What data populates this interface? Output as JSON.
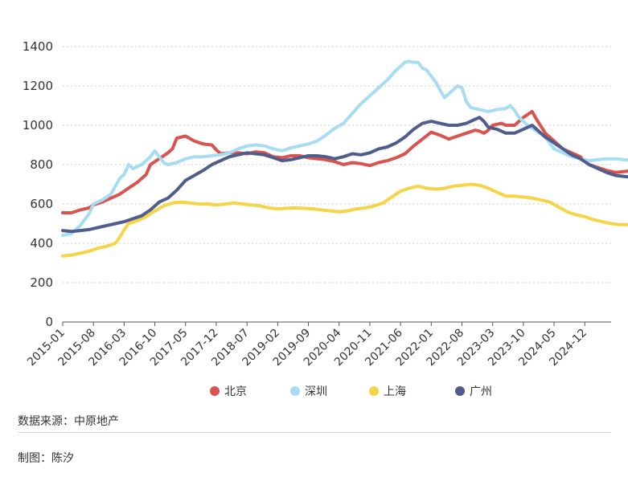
{
  "chart_data": {
    "type": "line",
    "title": "",
    "xlabel": "",
    "ylabel": "",
    "ylim": [
      0,
      1400
    ],
    "yticks": [
      0,
      200,
      400,
      600,
      800,
      1000,
      1200,
      1400
    ],
    "x_start": "2015-01",
    "x_end": "2025-06",
    "xticks": [
      "2015-01",
      "2015-08",
      "2016-03",
      "2016-10",
      "2017-05",
      "2017-12",
      "2018-07",
      "2019-02",
      "2019-09",
      "2020-04",
      "2020-11",
      "2021-06",
      "2022-01",
      "2022-08",
      "2023-03",
      "2023-10",
      "2024-05",
      "2024-12"
    ],
    "grid": true,
    "legend_position": "bottom",
    "series": [
      {
        "name": "北京",
        "color": "#d9534f",
        "points": [
          [
            0,
            555
          ],
          [
            2,
            555
          ],
          [
            4,
            570
          ],
          [
            6,
            580
          ],
          [
            7,
            595
          ],
          [
            9,
            610
          ],
          [
            11,
            630
          ],
          [
            13,
            650
          ],
          [
            15,
            680
          ],
          [
            17,
            710
          ],
          [
            19,
            750
          ],
          [
            20,
            800
          ],
          [
            22,
            830
          ],
          [
            24,
            860
          ],
          [
            25,
            880
          ],
          [
            26,
            935
          ],
          [
            28,
            945
          ],
          [
            30,
            920
          ],
          [
            32,
            905
          ],
          [
            34,
            900
          ],
          [
            35,
            875
          ],
          [
            36,
            855
          ],
          [
            38,
            860
          ],
          [
            40,
            860
          ],
          [
            42,
            855
          ],
          [
            44,
            865
          ],
          [
            46,
            860
          ],
          [
            48,
            840
          ],
          [
            50,
            835
          ],
          [
            52,
            845
          ],
          [
            54,
            845
          ],
          [
            56,
            835
          ],
          [
            58,
            830
          ],
          [
            60,
            825
          ],
          [
            62,
            815
          ],
          [
            64,
            800
          ],
          [
            66,
            810
          ],
          [
            68,
            805
          ],
          [
            70,
            795
          ],
          [
            72,
            810
          ],
          [
            74,
            820
          ],
          [
            76,
            835
          ],
          [
            78,
            855
          ],
          [
            80,
            895
          ],
          [
            82,
            930
          ],
          [
            84,
            965
          ],
          [
            86,
            950
          ],
          [
            88,
            930
          ],
          [
            90,
            945
          ],
          [
            92,
            960
          ],
          [
            94,
            975
          ],
          [
            95,
            970
          ],
          [
            96,
            960
          ],
          [
            97,
            975
          ],
          [
            98,
            1000
          ],
          [
            100,
            1010
          ],
          [
            101,
            1000
          ],
          [
            103,
            1000
          ],
          [
            105,
            1040
          ],
          [
            107,
            1070
          ],
          [
            108,
            1030
          ],
          [
            110,
            960
          ],
          [
            112,
            920
          ],
          [
            114,
            880
          ],
          [
            116,
            860
          ],
          [
            118,
            840
          ],
          [
            120,
            800
          ],
          [
            122,
            785
          ],
          [
            124,
            770
          ],
          [
            126,
            760
          ],
          [
            128,
            765
          ],
          [
            130,
            770
          ],
          [
            132,
            765
          ],
          [
            134,
            755
          ]
        ]
      },
      {
        "name": "深圳",
        "color": "#a8dcf2",
        "points": [
          [
            0,
            440
          ],
          [
            2,
            450
          ],
          [
            4,
            490
          ],
          [
            6,
            550
          ],
          [
            7,
            600
          ],
          [
            9,
            620
          ],
          [
            11,
            650
          ],
          [
            12,
            690
          ],
          [
            13,
            730
          ],
          [
            14,
            750
          ],
          [
            15,
            800
          ],
          [
            16,
            780
          ],
          [
            18,
            800
          ],
          [
            20,
            840
          ],
          [
            21,
            870
          ],
          [
            22,
            840
          ],
          [
            23,
            810
          ],
          [
            24,
            800
          ],
          [
            26,
            810
          ],
          [
            28,
            830
          ],
          [
            30,
            840
          ],
          [
            32,
            840
          ],
          [
            34,
            845
          ],
          [
            36,
            850
          ],
          [
            38,
            860
          ],
          [
            40,
            880
          ],
          [
            42,
            895
          ],
          [
            44,
            900
          ],
          [
            46,
            895
          ],
          [
            48,
            880
          ],
          [
            50,
            870
          ],
          [
            52,
            885
          ],
          [
            54,
            895
          ],
          [
            56,
            905
          ],
          [
            58,
            920
          ],
          [
            60,
            950
          ],
          [
            62,
            985
          ],
          [
            64,
            1010
          ],
          [
            66,
            1060
          ],
          [
            68,
            1110
          ],
          [
            70,
            1150
          ],
          [
            72,
            1190
          ],
          [
            74,
            1230
          ],
          [
            76,
            1280
          ],
          [
            78,
            1320
          ],
          [
            79,
            1325
          ],
          [
            80,
            1320
          ],
          [
            81,
            1320
          ],
          [
            82,
            1290
          ],
          [
            83,
            1280
          ],
          [
            84,
            1250
          ],
          [
            85,
            1220
          ],
          [
            86,
            1180
          ],
          [
            87,
            1140
          ],
          [
            88,
            1160
          ],
          [
            89,
            1180
          ],
          [
            90,
            1200
          ],
          [
            91,
            1190
          ],
          [
            92,
            1120
          ],
          [
            93,
            1090
          ],
          [
            95,
            1080
          ],
          [
            97,
            1070
          ],
          [
            99,
            1080
          ],
          [
            101,
            1085
          ],
          [
            102,
            1100
          ],
          [
            103,
            1075
          ],
          [
            104,
            1040
          ],
          [
            106,
            1000
          ],
          [
            108,
            970
          ],
          [
            110,
            940
          ],
          [
            112,
            880
          ],
          [
            114,
            860
          ],
          [
            116,
            840
          ],
          [
            118,
            830
          ],
          [
            120,
            820
          ],
          [
            122,
            825
          ],
          [
            124,
            830
          ],
          [
            126,
            830
          ],
          [
            128,
            825
          ],
          [
            130,
            820
          ],
          [
            132,
            815
          ],
          [
            134,
            810
          ]
        ]
      },
      {
        "name": "上海",
        "color": "#f5d547",
        "points": [
          [
            0,
            335
          ],
          [
            2,
            340
          ],
          [
            4,
            350
          ],
          [
            6,
            360
          ],
          [
            8,
            375
          ],
          [
            10,
            385
          ],
          [
            12,
            400
          ],
          [
            13,
            430
          ],
          [
            14,
            470
          ],
          [
            15,
            500
          ],
          [
            17,
            515
          ],
          [
            19,
            535
          ],
          [
            21,
            565
          ],
          [
            23,
            590
          ],
          [
            25,
            605
          ],
          [
            27,
            610
          ],
          [
            29,
            605
          ],
          [
            31,
            600
          ],
          [
            33,
            600
          ],
          [
            35,
            595
          ],
          [
            37,
            600
          ],
          [
            39,
            605
          ],
          [
            41,
            600
          ],
          [
            43,
            595
          ],
          [
            45,
            590
          ],
          [
            47,
            580
          ],
          [
            49,
            575
          ],
          [
            51,
            578
          ],
          [
            53,
            580
          ],
          [
            55,
            578
          ],
          [
            57,
            575
          ],
          [
            59,
            570
          ],
          [
            61,
            565
          ],
          [
            63,
            560
          ],
          [
            65,
            565
          ],
          [
            67,
            575
          ],
          [
            69,
            580
          ],
          [
            71,
            590
          ],
          [
            73,
            605
          ],
          [
            75,
            635
          ],
          [
            77,
            665
          ],
          [
            79,
            680
          ],
          [
            81,
            690
          ],
          [
            83,
            680
          ],
          [
            85,
            675
          ],
          [
            87,
            680
          ],
          [
            89,
            690
          ],
          [
            91,
            695
          ],
          [
            93,
            700
          ],
          [
            95,
            695
          ],
          [
            97,
            680
          ],
          [
            99,
            660
          ],
          [
            101,
            640
          ],
          [
            103,
            640
          ],
          [
            105,
            635
          ],
          [
            107,
            630
          ],
          [
            109,
            620
          ],
          [
            111,
            610
          ],
          [
            113,
            585
          ],
          [
            115,
            560
          ],
          [
            117,
            545
          ],
          [
            119,
            535
          ],
          [
            121,
            520
          ],
          [
            123,
            510
          ],
          [
            125,
            500
          ],
          [
            127,
            495
          ],
          [
            129,
            495
          ],
          [
            131,
            492
          ],
          [
            133,
            490
          ],
          [
            134,
            488
          ]
        ]
      },
      {
        "name": "广州",
        "color": "#4f5d8c",
        "points": [
          [
            0,
            465
          ],
          [
            2,
            460
          ],
          [
            4,
            465
          ],
          [
            6,
            470
          ],
          [
            8,
            480
          ],
          [
            10,
            490
          ],
          [
            12,
            500
          ],
          [
            14,
            510
          ],
          [
            16,
            525
          ],
          [
            18,
            540
          ],
          [
            20,
            570
          ],
          [
            22,
            610
          ],
          [
            24,
            630
          ],
          [
            26,
            670
          ],
          [
            28,
            720
          ],
          [
            30,
            745
          ],
          [
            32,
            770
          ],
          [
            34,
            800
          ],
          [
            36,
            820
          ],
          [
            38,
            840
          ],
          [
            40,
            850
          ],
          [
            42,
            860
          ],
          [
            44,
            855
          ],
          [
            46,
            850
          ],
          [
            48,
            835
          ],
          [
            50,
            820
          ],
          [
            52,
            825
          ],
          [
            54,
            835
          ],
          [
            56,
            845
          ],
          [
            58,
            845
          ],
          [
            60,
            840
          ],
          [
            62,
            830
          ],
          [
            64,
            840
          ],
          [
            66,
            855
          ],
          [
            68,
            850
          ],
          [
            70,
            860
          ],
          [
            72,
            880
          ],
          [
            74,
            890
          ],
          [
            76,
            910
          ],
          [
            78,
            940
          ],
          [
            80,
            980
          ],
          [
            82,
            1010
          ],
          [
            84,
            1020
          ],
          [
            86,
            1010
          ],
          [
            88,
            1000
          ],
          [
            90,
            1000
          ],
          [
            92,
            1010
          ],
          [
            94,
            1030
          ],
          [
            95,
            1040
          ],
          [
            96,
            1020
          ],
          [
            97,
            990
          ],
          [
            99,
            980
          ],
          [
            101,
            960
          ],
          [
            103,
            960
          ],
          [
            105,
            980
          ],
          [
            107,
            1000
          ],
          [
            108,
            980
          ],
          [
            110,
            940
          ],
          [
            112,
            910
          ],
          [
            114,
            880
          ],
          [
            116,
            850
          ],
          [
            118,
            830
          ],
          [
            120,
            800
          ],
          [
            122,
            780
          ],
          [
            124,
            760
          ],
          [
            126,
            745
          ],
          [
            128,
            740
          ],
          [
            130,
            735
          ],
          [
            132,
            720
          ],
          [
            134,
            700
          ]
        ]
      }
    ]
  },
  "footer": {
    "source": "数据来源：中原地产",
    "author": "制图：陈汐"
  }
}
